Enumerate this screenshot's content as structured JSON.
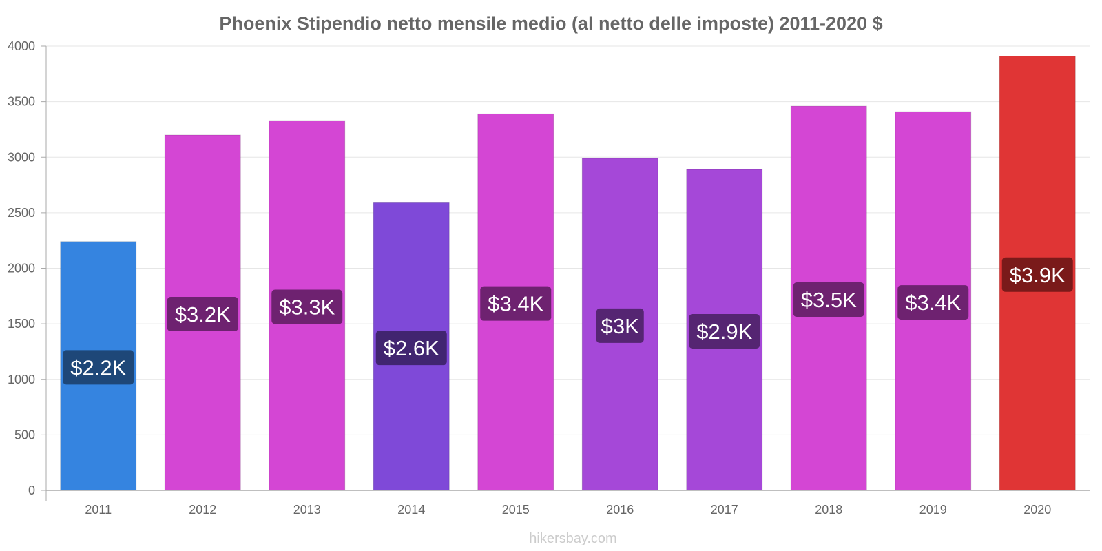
{
  "chart_data": {
    "type": "bar",
    "title": "Phoenix Stipendio netto mensile medio (al netto delle imposte) 2011-2020 $",
    "xlabel": "",
    "ylabel": "",
    "ylim": [
      0,
      4000
    ],
    "yticks": [
      0,
      500,
      1000,
      1500,
      2000,
      2500,
      3000,
      3500,
      4000
    ],
    "grid": true,
    "legend": "none",
    "categories": [
      "2011",
      "2012",
      "2013",
      "2014",
      "2015",
      "2016",
      "2017",
      "2018",
      "2019",
      "2020"
    ],
    "values": [
      2240,
      3200,
      3330,
      2590,
      3390,
      2990,
      2890,
      3460,
      3410,
      3910
    ],
    "data_labels": [
      "$2.2K",
      "$3.2K",
      "$3.3K",
      "$2.6K",
      "$3.4K",
      "$3K",
      "$2.9K",
      "$3.5K",
      "$3.4K",
      "$3.9K"
    ],
    "bar_colors": [
      "#3584e0",
      "#d446d4",
      "#d446d4",
      "#7f49d8",
      "#d446d4",
      "#a548d8",
      "#a548d8",
      "#d446d4",
      "#d446d4",
      "#e03535"
    ],
    "label_bg_colors": [
      "#1e4778",
      "#6e2270",
      "#6e2270",
      "#412570",
      "#6e2270",
      "#552572",
      "#552572",
      "#6e2270",
      "#6e2270",
      "#7a1a1a"
    ]
  },
  "watermark": "hikersbay.com"
}
